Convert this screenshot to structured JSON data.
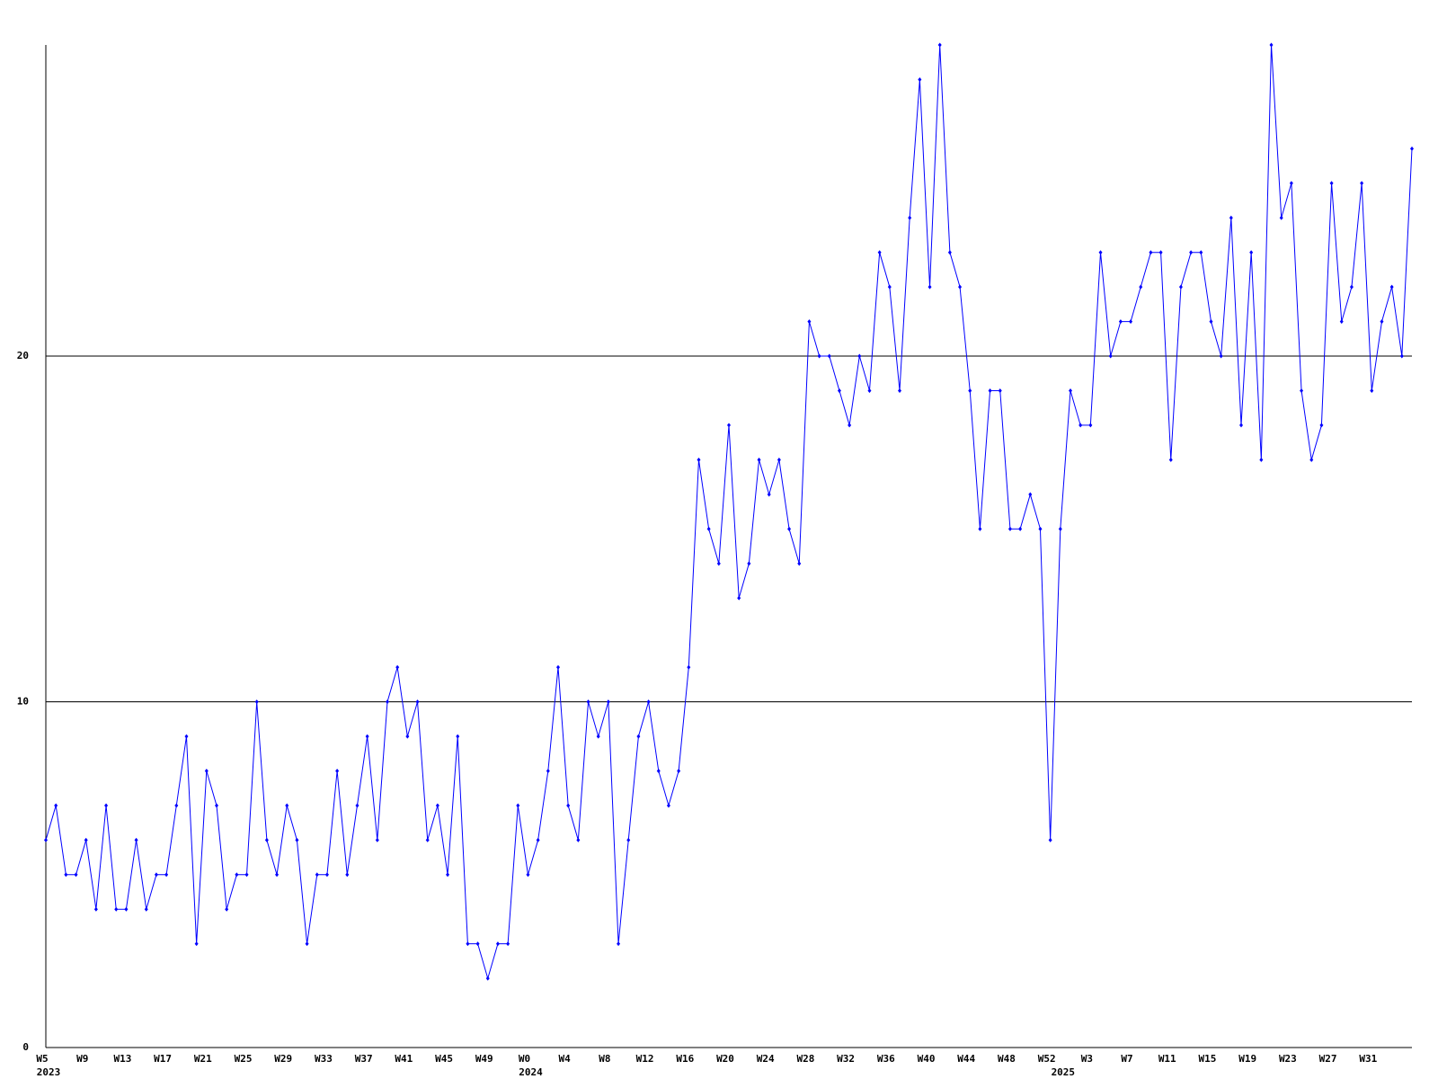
{
  "chart_data": {
    "type": "line",
    "categories": [
      "W5",
      null,
      null,
      null,
      "W9",
      null,
      null,
      null,
      "W13",
      null,
      null,
      null,
      "W17",
      null,
      null,
      null,
      "W21",
      null,
      null,
      null,
      "W25",
      null,
      null,
      null,
      "W29",
      null,
      null,
      null,
      "W33",
      null,
      null,
      null,
      "W37",
      null,
      null,
      null,
      "W41",
      null,
      null,
      null,
      "W45",
      null,
      null,
      null,
      "W49",
      null,
      null,
      null,
      "W0",
      null,
      null,
      null,
      "W4",
      null,
      null,
      null,
      "W8",
      null,
      null,
      null,
      "W12",
      null,
      null,
      null,
      "W16",
      null,
      null,
      null,
      "W20",
      null,
      null,
      null,
      "W24",
      null,
      null,
      null,
      "W28",
      null,
      null,
      null,
      "W32",
      null,
      null,
      null,
      "W36",
      null,
      null,
      null,
      "W40",
      null,
      null,
      null,
      "W44",
      null,
      null,
      null,
      "W48",
      null,
      null,
      null,
      "W52",
      null,
      null,
      null,
      "W3",
      null,
      null,
      null,
      "W7",
      null,
      null,
      null,
      "W11",
      null,
      null,
      null,
      "W15",
      null,
      null,
      null,
      "W19",
      null,
      null,
      null,
      "W23",
      null,
      null,
      null,
      "W27",
      null,
      null,
      null,
      "W31",
      null,
      null,
      null,
      null
    ],
    "years": [
      "2023",
      null,
      null,
      null,
      null,
      null,
      null,
      null,
      null,
      null,
      null,
      null,
      null,
      null,
      null,
      null,
      null,
      null,
      null,
      null,
      null,
      null,
      null,
      null,
      null,
      null,
      null,
      null,
      null,
      null,
      null,
      null,
      null,
      null,
      null,
      null,
      null,
      null,
      null,
      null,
      null,
      null,
      null,
      null,
      null,
      null,
      null,
      null,
      "2024",
      null,
      null,
      null,
      null,
      null,
      null,
      null,
      null,
      null,
      null,
      null,
      null,
      null,
      null,
      null,
      null,
      null,
      null,
      null,
      null,
      null,
      null,
      null,
      null,
      null,
      null,
      null,
      null,
      null,
      null,
      null,
      null,
      null,
      null,
      null,
      null,
      null,
      null,
      null,
      null,
      null,
      null,
      null,
      null,
      null,
      null,
      null,
      null,
      null,
      null,
      null,
      null,
      "2025",
      null,
      null,
      null,
      null,
      null,
      null,
      null,
      null,
      null,
      null,
      null,
      null,
      null,
      null,
      null,
      null,
      null,
      null,
      null,
      null,
      null,
      null,
      null,
      null,
      null,
      null,
      null,
      null,
      null,
      null,
      null,
      null,
      null,
      null,
      null
    ],
    "series": [
      {
        "color": "#0000ff",
        "values": [
          6,
          7,
          5,
          5,
          6,
          4,
          7,
          4,
          4,
          6,
          4,
          5,
          5,
          7,
          9,
          3,
          8,
          7,
          4,
          5,
          5,
          10,
          6,
          5,
          7,
          6,
          3,
          5,
          5,
          8,
          5,
          7,
          9,
          6,
          10,
          11,
          9,
          10,
          6,
          7,
          5,
          9,
          3,
          3,
          2,
          3,
          3,
          7,
          5,
          6,
          8,
          11,
          7,
          6,
          10,
          9,
          10,
          3,
          6,
          9,
          10,
          8,
          7,
          8,
          11,
          17,
          15,
          14,
          18,
          13,
          14,
          17,
          16,
          17,
          15,
          14,
          21,
          20,
          20,
          19,
          18,
          20,
          19,
          23,
          22,
          19,
          24,
          28,
          22,
          29,
          23,
          22,
          19,
          15,
          19,
          19,
          15,
          15,
          16,
          15,
          6,
          15,
          19,
          18,
          18,
          23,
          20,
          21,
          21,
          22,
          23,
          23,
          17,
          22,
          23,
          23,
          21,
          20,
          24,
          18,
          23,
          17,
          29,
          24,
          25,
          19,
          17,
          18,
          25,
          21,
          22,
          25,
          19,
          21,
          22,
          20,
          26
        ]
      }
    ],
    "ylim": [
      0,
      29
    ],
    "yticks": [
      0,
      10,
      20
    ],
    "grid": true
  }
}
